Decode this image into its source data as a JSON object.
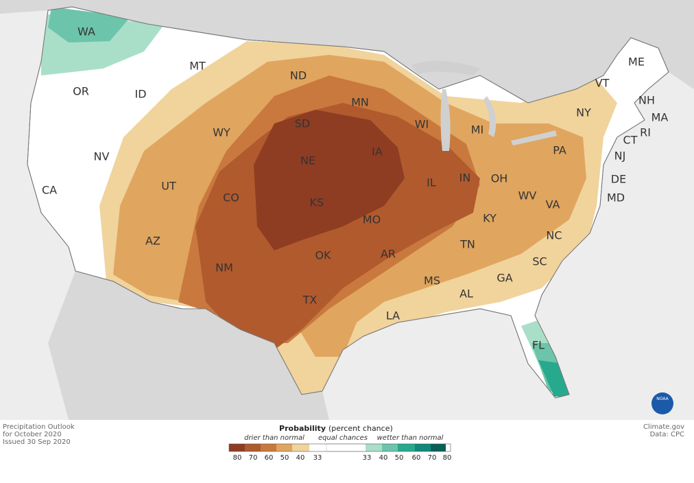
{
  "map": {
    "states": [
      "WA",
      "OR",
      "ID",
      "MT",
      "NV",
      "CA",
      "UT",
      "AZ",
      "WY",
      "CO",
      "NM",
      "ND",
      "SD",
      "NE",
      "KS",
      "OK",
      "TX",
      "MN",
      "IA",
      "MO",
      "AR",
      "LA",
      "WI",
      "IL",
      "MI",
      "IN",
      "OH",
      "KY",
      "TN",
      "MS",
      "AL",
      "GA",
      "FL",
      "SC",
      "NC",
      "VA",
      "WV",
      "PA",
      "NY",
      "VT",
      "ME",
      "NH",
      "MA",
      "RI",
      "CT",
      "NJ",
      "DE",
      "MD"
    ]
  },
  "footer": {
    "left": [
      "Precipitation Outlook",
      "for October 2020",
      "Issued 30 Sep 2020"
    ],
    "right": [
      "Climate.gov",
      "Data: CPC"
    ],
    "logo": "NOAA"
  },
  "legend": {
    "title": "Probability",
    "subtitle": "(percent chance)",
    "drier_label": "drier than normal",
    "equal_label": "equal chances",
    "wetter_label": "wetter than normal",
    "drier_ticks": [
      80,
      70,
      60,
      50,
      40,
      33
    ],
    "drier_colors": [
      "#8e3d22",
      "#b15a2e",
      "#c9793e",
      "#e0a55f",
      "#f1d39c"
    ],
    "wetter_ticks": [
      33,
      40,
      50,
      60,
      70,
      80
    ],
    "wetter_colors": [
      "#a9dfc9",
      "#6cc5aa",
      "#27a98e",
      "#10897a",
      "#075e56"
    ]
  }
}
